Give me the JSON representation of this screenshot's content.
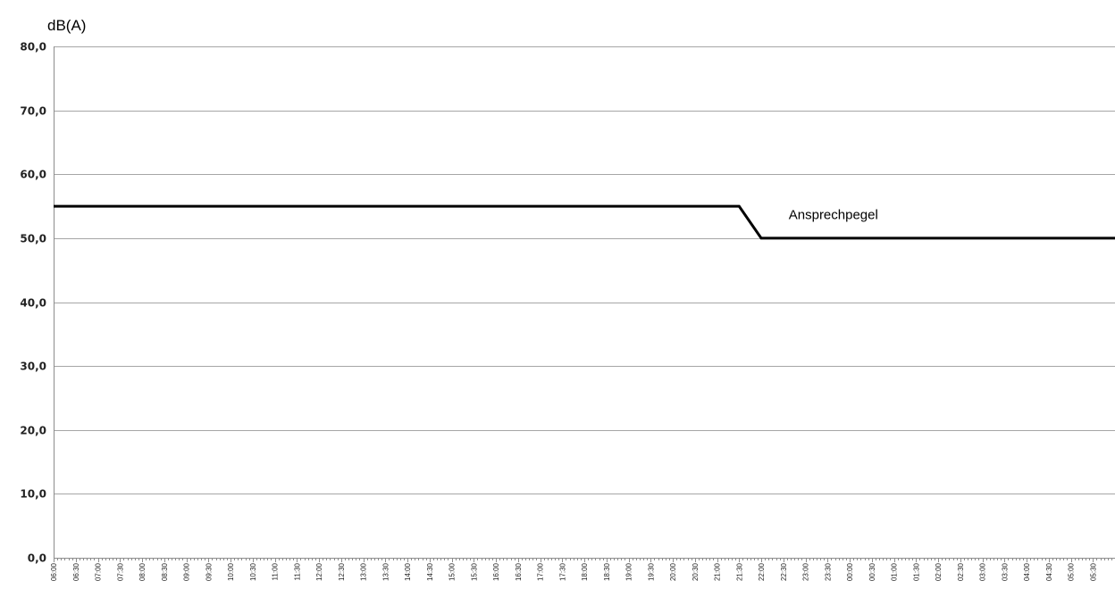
{
  "chart_data": {
    "type": "line",
    "title": "",
    "xlabel": "",
    "ylabel": "dB(A)",
    "ylim": [
      0,
      80
    ],
    "yticks": [
      "0,0",
      "10,0",
      "20,0",
      "30,0",
      "40,0",
      "50,0",
      "60,0",
      "70,0",
      "80,0"
    ],
    "grid": true,
    "categories": [
      "06:00",
      "06:30",
      "07:00",
      "07:30",
      "08:00",
      "08:30",
      "09:00",
      "09:30",
      "10:00",
      "10:30",
      "11:00",
      "11:30",
      "12:00",
      "12:30",
      "13:00",
      "13:30",
      "14:00",
      "14:30",
      "15:00",
      "15:30",
      "16:00",
      "16:30",
      "17:00",
      "17:30",
      "18:00",
      "18:30",
      "19:00",
      "19:30",
      "20:00",
      "20:30",
      "21:00",
      "21:30",
      "22:00",
      "22:30",
      "23:00",
      "23:30",
      "00:00",
      "00:30",
      "01:00",
      "01:30",
      "02:00",
      "02:30",
      "03:00",
      "03:30",
      "04:00",
      "04:30",
      "05:00",
      "05:30"
    ],
    "series": [
      {
        "name": "Ansprechpegel",
        "color": "#000000",
        "values": [
          55,
          55,
          55,
          55,
          55,
          55,
          55,
          55,
          55,
          55,
          55,
          55,
          55,
          55,
          55,
          55,
          55,
          55,
          55,
          55,
          55,
          55,
          55,
          55,
          55,
          55,
          55,
          55,
          55,
          55,
          55,
          55,
          50,
          50,
          50,
          50,
          50,
          50,
          50,
          50,
          50,
          50,
          50,
          50,
          50,
          50,
          50,
          50
        ]
      }
    ],
    "annotations": [
      {
        "text": "Ansprechpegel",
        "x": "22:30",
        "y": 53
      }
    ]
  }
}
